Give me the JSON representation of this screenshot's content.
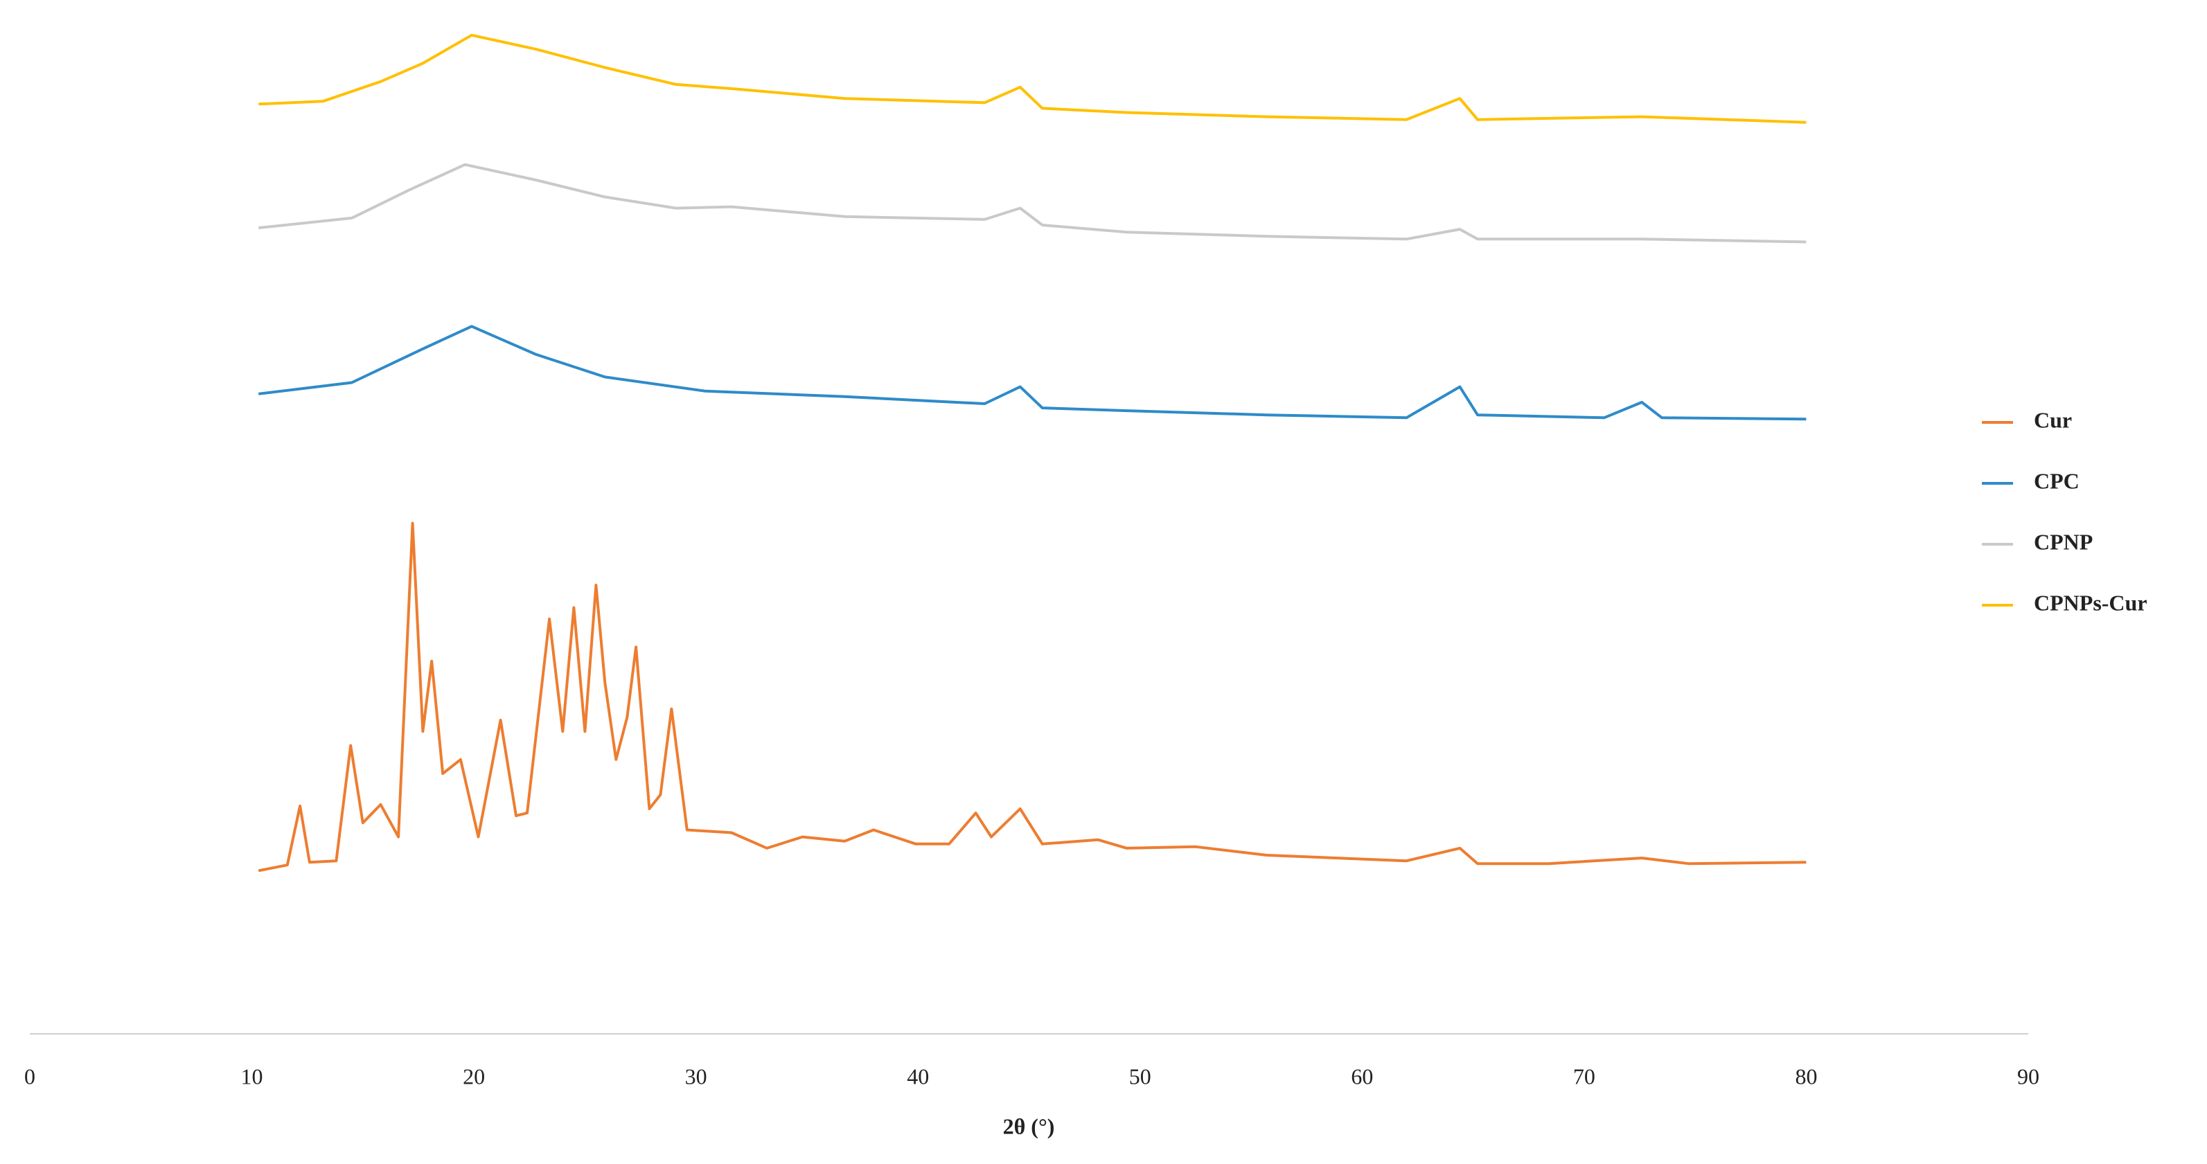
{
  "chart_data": {
    "type": "line",
    "x_label": "2θ (°)",
    "xlim": [
      0,
      90
    ],
    "xticks": [
      0,
      10,
      20,
      30,
      40,
      50,
      60,
      70,
      80,
      90
    ],
    "ylim": [
      0,
      735
    ],
    "legend": "right",
    "series": [
      {
        "name": "Cur",
        "color": "#ed7d31",
        "x": [
          10.3,
          11.6,
          12.17,
          12.6,
          13.8,
          14.45,
          15.0,
          15.8,
          16.6,
          17.24,
          17.7,
          18.1,
          18.6,
          19.4,
          20.2,
          21.2,
          21.9,
          22.4,
          23.4,
          24.0,
          24.5,
          25.0,
          25.5,
          25.9,
          26.4,
          26.9,
          27.3,
          27.9,
          28.4,
          28.9,
          29.6,
          31.6,
          33.2,
          34.8,
          36.7,
          38.0,
          39.9,
          41.4,
          42.6,
          43.3,
          44.6,
          45.6,
          48.1,
          49.4,
          52.5,
          55.7,
          62.0,
          64.4,
          65.2,
          68.4,
          72.6,
          74.7,
          80.0
        ],
        "values": [
          116,
          120,
          162,
          122,
          123,
          205,
          150,
          163,
          140,
          363,
          215,
          265,
          185,
          195,
          140,
          223,
          155,
          157,
          295,
          215,
          303,
          215,
          319,
          250,
          195,
          225,
          275,
          160,
          170,
          231,
          145,
          143,
          132,
          140,
          137,
          145,
          135,
          135,
          157,
          140,
          160,
          135,
          138,
          132,
          133,
          127,
          123,
          132,
          121,
          121,
          125,
          121,
          122
        ]
      },
      {
        "name": "CPC",
        "color": "#2e8bc9",
        "x": [
          10.3,
          14.5,
          17.7,
          19.9,
          22.8,
          25.9,
          30.4,
          36.7,
          43.0,
          44.6,
          45.6,
          49.4,
          55.7,
          62.0,
          64.4,
          65.2,
          70.9,
          72.6,
          73.5,
          80.0
        ],
        "values": [
          455,
          463,
          487,
          503,
          483,
          467,
          457,
          453,
          448,
          460,
          445,
          443,
          440,
          438,
          460,
          440,
          438,
          449,
          438,
          437
        ]
      },
      {
        "name": "CPNP",
        "color": "#c9c9c9",
        "x": [
          10.3,
          14.5,
          17.1,
          19.6,
          22.8,
          25.9,
          29.1,
          31.6,
          36.7,
          43.0,
          44.6,
          45.6,
          49.4,
          55.7,
          62.0,
          64.4,
          65.2,
          72.6,
          80.0
        ],
        "values": [
          573,
          580,
          600,
          618,
          607,
          595,
          587,
          588,
          581,
          579,
          587,
          575,
          570,
          567,
          565,
          572,
          565,
          565,
          563
        ]
      },
      {
        "name": "CPNPs-Cur",
        "color": "#ffc000",
        "x": [
          10.3,
          13.2,
          15.8,
          17.7,
          19.9,
          22.8,
          25.9,
          29.1,
          31.6,
          36.7,
          43.0,
          44.6,
          45.6,
          49.4,
          55.7,
          62.0,
          64.4,
          65.2,
          72.6,
          80.0
        ],
        "values": [
          661,
          663,
          677,
          690,
          710,
          700,
          687,
          675,
          672,
          665,
          662,
          673,
          658,
          655,
          652,
          650,
          665,
          650,
          652,
          648
        ]
      }
    ]
  }
}
